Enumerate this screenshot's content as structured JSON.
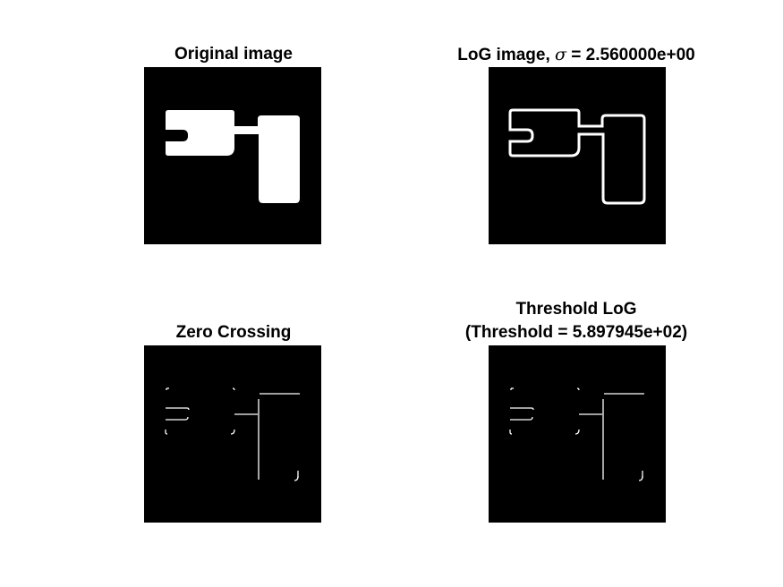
{
  "figure": {
    "background": "#ffffff",
    "panels": [
      {
        "id": "original",
        "title_lines": [
          "Original image"
        ]
      },
      {
        "id": "log",
        "title_prefix": "LoG image, ",
        "title_symbol": "σ",
        "title_suffix": " = 2.560000e+00"
      },
      {
        "id": "zero-crossing",
        "title_lines": [
          "Zero Crossing"
        ]
      },
      {
        "id": "threshold",
        "title_lines": [
          "Threshold LoG",
          "(Threshold = 5.897945e+02)"
        ]
      }
    ]
  },
  "colors": {
    "image_background": "#000000",
    "foreground": "#ffffff",
    "title_text": "#000000"
  }
}
